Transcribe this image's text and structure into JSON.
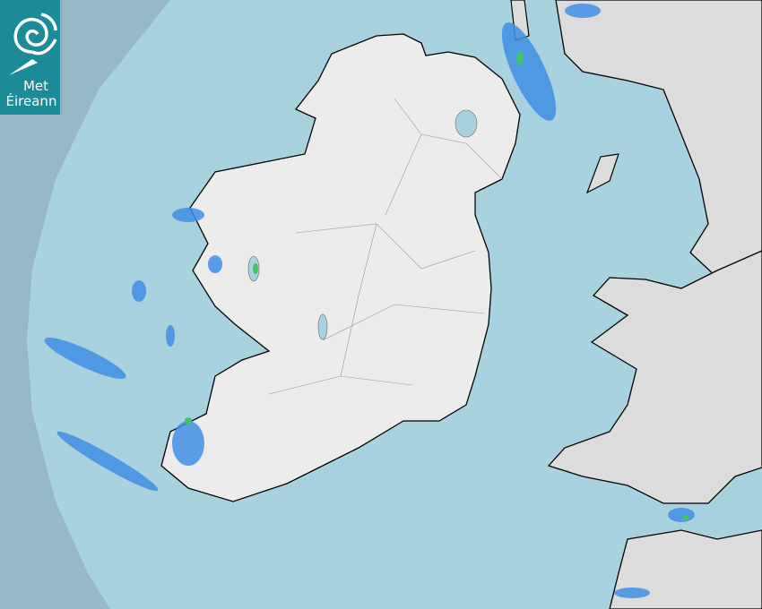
{
  "logo": {
    "line1": "Met",
    "line2": "Éireann"
  },
  "map": {
    "type": "rainfall-radar",
    "colors": {
      "outside_radar": "#97b8c5",
      "radar_coverage": "#a9d2df",
      "land": "#ececec",
      "light_rain": "#3f8fe6",
      "moderate_rain": "#3fc46a",
      "coast": "#000000"
    }
  }
}
